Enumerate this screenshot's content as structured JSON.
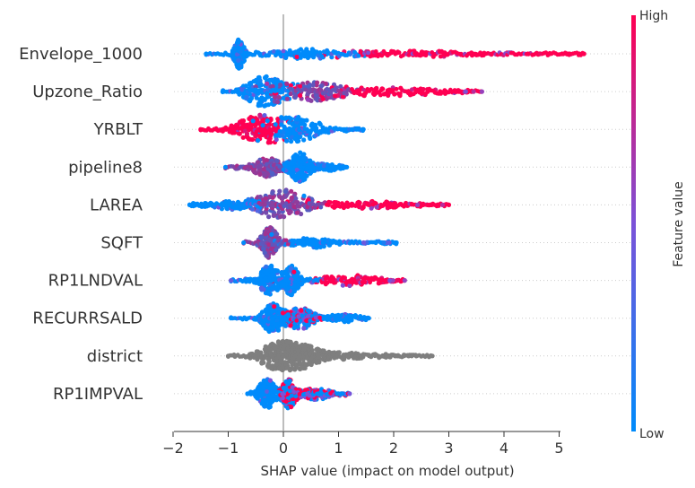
{
  "chart_data": {
    "type": "scatter",
    "subtype": "shap-beeswarm",
    "xlabel": "SHAP value (impact on model output)",
    "xlim": [
      -2.15,
      5.7
    ],
    "xticks": [
      -2,
      -1,
      0,
      1,
      2,
      3,
      4,
      5
    ],
    "xtick_labels": [
      "−2",
      "−1",
      "0",
      "1",
      "2",
      "3",
      "4",
      "5"
    ],
    "colorbar": {
      "label": "Feature value",
      "high": "High",
      "low": "Low"
    },
    "colors": {
      "high": "#ff0052",
      "low": "#008bfb",
      "mid": "#7b52d8",
      "neutral": "#7f7f7f",
      "axis": "#333333",
      "zero_line": "#999999"
    },
    "features": [
      {
        "name": "Envelope_1000",
        "min": -1.4,
        "max": 5.45,
        "colored": true,
        "clusters": [
          {
            "center": -0.8,
            "spread": 0.07,
            "height": 1.0,
            "color": "low"
          },
          {
            "center": 0.35,
            "spread": 0.55,
            "height": 0.3,
            "color": "low"
          },
          {
            "center": 2.4,
            "spread": 1.1,
            "height": 0.2,
            "color": "high"
          }
        ]
      },
      {
        "name": "Upzone_Ratio",
        "min": -1.1,
        "max": 3.6,
        "colored": true,
        "clusters": [
          {
            "center": -0.35,
            "spread": 0.28,
            "height": 1.0,
            "color": "low"
          },
          {
            "center": 0.55,
            "spread": 0.35,
            "height": 0.55,
            "color": "mid"
          },
          {
            "center": 1.9,
            "spread": 0.85,
            "height": 0.3,
            "color": "high"
          }
        ]
      },
      {
        "name": "YRBLT",
        "min": -1.5,
        "max": 1.45,
        "colored": true,
        "clusters": [
          {
            "center": -0.45,
            "spread": 0.3,
            "height": 1.0,
            "color": "high"
          },
          {
            "center": 0.3,
            "spread": 0.32,
            "height": 0.8,
            "color": "low"
          }
        ]
      },
      {
        "name": "pipeline8",
        "min": -1.05,
        "max": 1.15,
        "colored": true,
        "clusters": [
          {
            "center": -0.3,
            "spread": 0.2,
            "height": 0.65,
            "color": "mid"
          },
          {
            "center": 0.3,
            "spread": 0.13,
            "height": 1.0,
            "color": "low"
          },
          {
            "center": 0.8,
            "spread": 0.2,
            "height": 0.25,
            "color": "low"
          }
        ]
      },
      {
        "name": "LAREA",
        "min": -1.7,
        "max": 3.0,
        "colored": true,
        "clusters": [
          {
            "center": 0.0,
            "spread": 0.35,
            "height": 1.0,
            "color": "mid"
          },
          {
            "center": -0.95,
            "spread": 0.35,
            "height": 0.3,
            "color": "low"
          },
          {
            "center": 1.5,
            "spread": 0.6,
            "height": 0.25,
            "color": "high"
          }
        ]
      },
      {
        "name": "SQFT",
        "min": -0.72,
        "max": 2.05,
        "colored": true,
        "clusters": [
          {
            "center": -0.25,
            "spread": 0.12,
            "height": 1.0,
            "color": "mid"
          },
          {
            "center": 0.5,
            "spread": 0.3,
            "height": 0.35,
            "color": "low"
          }
        ]
      },
      {
        "name": "RP1LNDVAL",
        "min": -0.95,
        "max": 2.2,
        "colored": true,
        "clusters": [
          {
            "center": -0.25,
            "spread": 0.15,
            "height": 1.0,
            "color": "low"
          },
          {
            "center": 0.15,
            "spread": 0.1,
            "height": 0.9,
            "color": "low"
          },
          {
            "center": 1.2,
            "spread": 0.5,
            "height": 0.35,
            "color": "high"
          }
        ]
      },
      {
        "name": "RECURRSALD",
        "min": -0.95,
        "max": 1.55,
        "colored": true,
        "clusters": [
          {
            "center": -0.2,
            "spread": 0.14,
            "height": 1.0,
            "color": "low"
          },
          {
            "center": 0.3,
            "spread": 0.2,
            "height": 0.75,
            "color": "mix"
          },
          {
            "center": 1.1,
            "spread": 0.25,
            "height": 0.3,
            "color": "low"
          }
        ]
      },
      {
        "name": "district",
        "min": -1.0,
        "max": 2.7,
        "colored": false,
        "clusters": [
          {
            "center": -0.15,
            "spread": 0.25,
            "height": 1.0,
            "color": "neutral"
          },
          {
            "center": 0.3,
            "spread": 0.25,
            "height": 0.9,
            "color": "neutral"
          },
          {
            "center": 1.0,
            "spread": 0.5,
            "height": 0.3,
            "color": "neutral"
          }
        ]
      },
      {
        "name": "RP1IMPVAL",
        "min": -0.65,
        "max": 1.2,
        "colored": true,
        "clusters": [
          {
            "center": -0.3,
            "spread": 0.12,
            "height": 1.0,
            "color": "low"
          },
          {
            "center": 0.1,
            "spread": 0.1,
            "height": 0.95,
            "color": "mix"
          },
          {
            "center": 0.6,
            "spread": 0.2,
            "height": 0.4,
            "color": "mix"
          }
        ]
      }
    ]
  }
}
